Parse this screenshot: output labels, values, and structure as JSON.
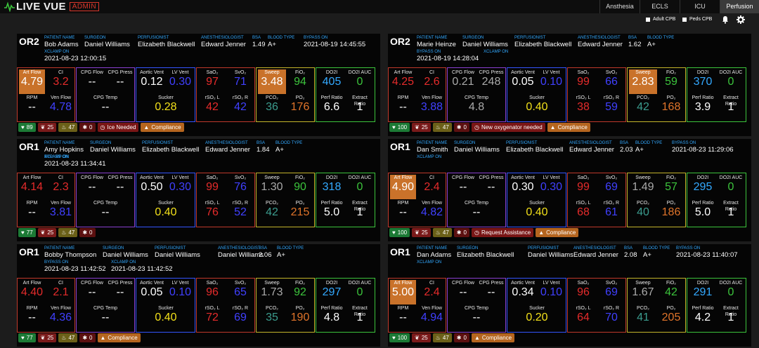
{
  "app": {
    "title": "LIVE VUE",
    "badge": "ADMIN"
  },
  "tabs": [
    {
      "label": "Ansthesia",
      "active": false
    },
    {
      "label": "ECLS",
      "active": false
    },
    {
      "label": "ICU",
      "active": false
    },
    {
      "label": "Perfusion",
      "active": true
    }
  ],
  "filters": [
    {
      "label": "Adult CPB"
    },
    {
      "label": "Peds CPB"
    }
  ],
  "labels": {
    "patient": "PATIENT NAME",
    "surgeon": "SURGEON",
    "perfusionist": "PERFUSIONIST",
    "anesthesiologist": "ANESTHESIOLOGIST",
    "bsa": "BSA",
    "blood_type": "BLOOD TYPE",
    "bypass_on": "BYPASS ON",
    "xclamp_on": "XCLAMP ON"
  },
  "metric_labels": {
    "art_flow": "Art Flow",
    "ci": "CI",
    "rpm": "RPM",
    "ven_flow": "Ven Flow",
    "cpg_flow": "CPG Flow",
    "cpg_press": "CPG Press",
    "cpg_temp": "CPG Temp",
    "aortic_vent": "Aortic Vent",
    "lv_vent": "LV Vent",
    "sucker": "Sucker",
    "sao2": "SaO₂",
    "svo2": "SvO₂",
    "rso2_l": "rSO₂ L",
    "rso2_r": "rSO₂ R",
    "sweep": "Sweep",
    "fio2": "FiO₂",
    "pco2": "PCO₂",
    "po2": "PO₂",
    "do2i": "DO2I",
    "do2i_auc": "DO2I AUC",
    "perf_ratio": "Perf Ratio",
    "extract_ratio": "Extract Ratio"
  },
  "cards": [
    {
      "room": "OR2",
      "patient": "Bob Adams",
      "surgeon": "Daniel Williams",
      "perfusionist": "Elizabeth Blackwell",
      "anesthesiologist": "Edward Jenner",
      "bsa": "1.49",
      "blood_type": "A+",
      "bypass_on": "2021-08-19 14:45:55",
      "xclamp_on": "2021-08-23 12:00:15",
      "art_flow": "4.79",
      "ci": "3.2",
      "rpm": "--",
      "ven_flow": "4.78",
      "cpg_flow": "--",
      "cpg_press": "--",
      "cpg_temp": "--",
      "aortic_vent": "0.12",
      "lv_vent": "0.30",
      "sucker": "0.28",
      "sao2": "97",
      "svo2": "71",
      "rso2_l": "42",
      "rso2_r": "42",
      "sweep": "3.48",
      "fio2": "94",
      "pco2": "36",
      "po2": "176",
      "do2i": "405",
      "do2i_auc": "0",
      "perf_ratio": "6.6",
      "extract_ratio": "1",
      "badges": {
        "heart": "89",
        "lungs": "25",
        "fire": "47",
        "virus": "0"
      },
      "alert": "Ice Needed",
      "compliance": "Compliance"
    },
    {
      "room": "OR2",
      "patient": "Marie Heinze",
      "surgeon": "Daniel Williams",
      "perfusionist": "Elizabeth Blackwell",
      "anesthesiologist": "Edward Jenner",
      "bsa": "1.62",
      "blood_type": "A+",
      "bypass_on": "2021-08-19 14:28:04",
      "xclamp_on": "",
      "art_flow": "4.25",
      "ci": "2.6",
      "rpm": "--",
      "ven_flow": "3.88",
      "cpg_flow": "0.21",
      "cpg_press": "248",
      "cpg_temp": "4.8",
      "aortic_vent": "0.05",
      "lv_vent": "0.10",
      "sucker": "0.40",
      "sao2": "99",
      "svo2": "66",
      "rso2_l": "38",
      "rso2_r": "59",
      "sweep": "2.83",
      "fio2": "59",
      "pco2": "42",
      "po2": "168",
      "do2i": "370",
      "do2i_auc": "0",
      "perf_ratio": "3.9",
      "extract_ratio": "1",
      "badges": {
        "heart": "100",
        "lungs": "25",
        "fire": "47",
        "virus": "0"
      },
      "alert": "New oxygenator needed",
      "compliance": "Compliance"
    },
    {
      "room": "OR1",
      "patient": "Amy Hopkins",
      "surgeon": "Daniel Williams",
      "perfusionist": "Elizabeth Blackwell",
      "anesthesiologist": "Edward Jenner",
      "bsa": "1.84",
      "blood_type": "A+",
      "bypass_on": "2021-08-23 11:34:41",
      "xclamp_on": "",
      "art_flow": "4.14",
      "ci": "2.3",
      "rpm": "--",
      "ven_flow": "3.81",
      "cpg_flow": "--",
      "cpg_press": "--",
      "cpg_temp": "--",
      "aortic_vent": "0.50",
      "lv_vent": "0.30",
      "sucker": "0.40",
      "sao2": "99",
      "svo2": "76",
      "rso2_l": "76",
      "rso2_r": "52",
      "sweep": "1.30",
      "fio2": "90",
      "pco2": "42",
      "po2": "215",
      "do2i": "318",
      "do2i_auc": "0",
      "perf_ratio": "5.0",
      "extract_ratio": "1",
      "badges": {
        "heart": "77",
        "lungs": "25",
        "fire": "47",
        "virus": "0"
      },
      "alert": "",
      "compliance": ""
    },
    {
      "room": "OR1",
      "patient": "Dan Smith",
      "surgeon": "Daniel Williams",
      "perfusionist": "Elizabeth Blackwell",
      "anesthesiologist": "Edward Jenner",
      "bsa": "2.03",
      "blood_type": "A+",
      "bypass_on": "2021-08-23 11:29:06",
      "xclamp_on": "",
      "art_flow": "4.90",
      "ci": "2.4",
      "rpm": "--",
      "ven_flow": "4.82",
      "cpg_flow": "--",
      "cpg_press": "--",
      "cpg_temp": "--",
      "aortic_vent": "0.30",
      "lv_vent": "0.30",
      "sucker": "0.40",
      "sao2": "99",
      "svo2": "69",
      "rso2_l": "68",
      "rso2_r": "61",
      "sweep": "1.49",
      "fio2": "57",
      "pco2": "40",
      "po2": "186",
      "do2i": "295",
      "do2i_auc": "0",
      "perf_ratio": "5.0",
      "extract_ratio": "1",
      "badges": {
        "heart": "100",
        "lungs": "25",
        "fire": "47",
        "virus": "0"
      },
      "alert": "Request Assistance",
      "compliance": "Compliance"
    },
    {
      "room": "OR1",
      "patient": "Bobby Thompson",
      "surgeon": "Daniel Williams",
      "perfusionist": "Daniel Williams",
      "anesthesiologist": "Daniel Williams",
      "bsa": "2.06",
      "blood_type": "A+",
      "bypass_on": "2021-08-23 11:42:52",
      "xclamp_on": "2021-08-23 11:42:52",
      "art_flow": "4.40",
      "ci": "2.1",
      "rpm": "--",
      "ven_flow": "4.36",
      "cpg_flow": "--",
      "cpg_press": "--",
      "cpg_temp": "--",
      "aortic_vent": "0.05",
      "lv_vent": "0.10",
      "sucker": "0.40",
      "sao2": "96",
      "svo2": "65",
      "rso2_l": "72",
      "rso2_r": "69",
      "sweep": "1.73",
      "fio2": "92",
      "pco2": "35",
      "po2": "190",
      "do2i": "297",
      "do2i_auc": "0",
      "perf_ratio": "4.8",
      "extract_ratio": "1",
      "badges": {
        "heart": "77",
        "lungs": "25",
        "fire": "47",
        "virus": "0"
      },
      "alert": "",
      "compliance": "Compliance"
    },
    {
      "room": "OR1",
      "patient": "Dan Adams",
      "surgeon": "Elizabeth Blackwell",
      "perfusionist": "Daniel Williams",
      "anesthesiologist": "Edward Jenner",
      "bsa": "2.08",
      "blood_type": "A+",
      "bypass_on": "2021-08-23 11:40:07",
      "xclamp_on": "",
      "art_flow": "5.00",
      "ci": "2.4",
      "rpm": "--",
      "ven_flow": "4.94",
      "cpg_flow": "--",
      "cpg_press": "--",
      "cpg_temp": "--",
      "aortic_vent": "0.34",
      "lv_vent": "0.10",
      "sucker": "0.20",
      "sao2": "96",
      "svo2": "69",
      "rso2_l": "64",
      "rso2_r": "70",
      "sweep": "1.67",
      "fio2": "42",
      "pco2": "41",
      "po2": "205",
      "do2i": "291",
      "do2i_auc": "0",
      "perf_ratio": "4.2",
      "extract_ratio": "1",
      "badges": {
        "heart": "100",
        "lungs": "25",
        "fire": "47",
        "virus": "0"
      },
      "alert": "",
      "compliance": "Compliance"
    }
  ]
}
